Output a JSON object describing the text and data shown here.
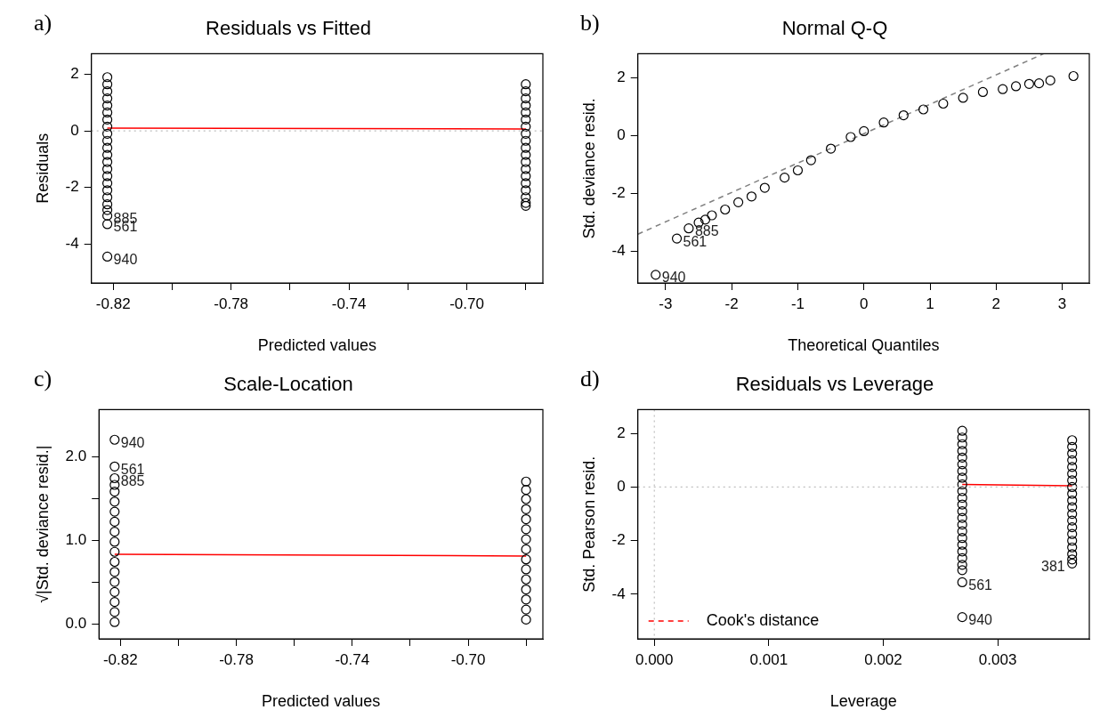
{
  "chart_data": [
    {
      "type": "scatter",
      "title": "Residuals vs Fitted",
      "xlabel": "Predicted values",
      "ylabel": "Residuals",
      "marker": "circle",
      "grid": false,
      "xlim": [
        -0.8274,
        -0.6742
      ],
      "xticks": [
        -0.82,
        {
          "value": -0.8,
          "label": null
        },
        -0.78,
        {
          "value": -0.76,
          "label": null
        },
        -0.74,
        {
          "value": -0.72,
          "label": null
        },
        {
          "value": -0.7,
          "label": "-0.70"
        },
        {
          "value": -0.68,
          "label": null
        }
      ],
      "ylim": [
        -5.38,
        2.73
      ],
      "yticks": [
        -4,
        -2,
        0,
        2
      ],
      "series": [
        {
          "color": "#000000",
          "x": [
            -0.822,
            -0.822,
            -0.822,
            -0.822,
            -0.822,
            -0.822,
            -0.822,
            -0.822,
            -0.822,
            -0.822,
            -0.822,
            -0.822,
            -0.822,
            -0.822,
            -0.822,
            -0.822,
            -0.822,
            -0.822,
            -0.822,
            -0.822,
            -0.822,
            -0.822,
            -0.822
          ],
          "values": [
            1.9,
            1.65,
            1.4,
            1.15,
            0.9,
            0.65,
            0.4,
            0.15,
            -0.1,
            -0.35,
            -0.6,
            -0.85,
            -1.1,
            -1.35,
            -1.6,
            -1.85,
            -2.1,
            -2.35,
            -2.6,
            -2.8,
            -3.0,
            -3.3,
            -4.45
          ]
        },
        {
          "color": "#000000",
          "x": [
            -0.68,
            -0.68,
            -0.68,
            -0.68,
            -0.68,
            -0.68,
            -0.68,
            -0.68,
            -0.68,
            -0.68,
            -0.68,
            -0.68,
            -0.68,
            -0.68,
            -0.68,
            -0.68,
            -0.68,
            -0.68,
            -0.68
          ],
          "values": [
            1.65,
            1.4,
            1.15,
            0.9,
            0.65,
            0.4,
            0.15,
            -0.1,
            -0.35,
            -0.6,
            -0.85,
            -1.1,
            -1.35,
            -1.6,
            -1.85,
            -2.1,
            -2.35,
            -2.55,
            -2.65
          ]
        },
        {
          "type": "line",
          "marker": "none",
          "color": "#ff0000",
          "x": [
            -0.822,
            -0.68
          ],
          "values": [
            0.1,
            0.07
          ]
        }
      ],
      "ref_lines": [
        {
          "axis": "y",
          "value": 0,
          "color": "#bebebe",
          "line_style": "dotted"
        }
      ],
      "annotations": [
        "a)",
        {
          "text": "885",
          "x": -0.822,
          "y": -3.0
        },
        {
          "text": "561",
          "x": -0.822,
          "y": -3.3
        },
        {
          "text": "940",
          "x": -0.822,
          "y": -4.45
        }
      ]
    },
    {
      "type": "scatter",
      "title": "Normal Q-Q",
      "xlabel": "Theoretical Quantiles",
      "ylabel": "Std. deviance resid.",
      "marker": "circle",
      "grid": false,
      "xlim": [
        -3.42,
        3.41
      ],
      "xticks": [
        -3,
        -2,
        -1,
        0,
        1,
        2,
        3
      ],
      "ylim": [
        -5.08,
        2.82
      ],
      "yticks": [
        -4,
        -2,
        0,
        2
      ],
      "series": [
        {
          "color": "#000000",
          "x": [
            -3.15,
            -2.83,
            -2.65,
            -2.5,
            -2.4,
            -2.3,
            -2.1,
            -1.9,
            -1.7,
            -1.5,
            -1.2,
            -1.0,
            -0.8,
            -0.5,
            -0.2,
            0,
            0.3,
            0.6,
            0.9,
            1.2,
            1.5,
            1.8,
            2.1,
            2.3,
            2.5,
            2.65,
            2.82,
            3.17
          ],
          "values": [
            -4.8,
            -3.55,
            -3.2,
            -3.0,
            -2.9,
            -2.75,
            -2.55,
            -2.3,
            -2.1,
            -1.8,
            -1.45,
            -1.2,
            -0.85,
            -0.45,
            -0.05,
            0.15,
            0.45,
            0.7,
            0.9,
            1.1,
            1.3,
            1.5,
            1.6,
            1.7,
            1.78,
            1.8,
            1.9,
            2.05
          ]
        },
        {
          "type": "line",
          "marker": "none",
          "color": "#808080",
          "line_style": "dashed",
          "x": [
            -3.42,
            2.72
          ],
          "values": [
            -3.4,
            2.82
          ]
        }
      ],
      "annotations": [
        "b)",
        {
          "text": "885",
          "x": -2.65,
          "y": -3.2
        },
        {
          "text": "561",
          "x": -2.83,
          "y": -3.55
        },
        {
          "text": "940",
          "x": -3.15,
          "y": -4.8
        }
      ]
    },
    {
      "type": "scatter",
      "title": "Scale-Location",
      "xlabel": "Predicted values",
      "ylabel": "√|Std. deviance resid.|",
      "marker": "circle",
      "grid": false,
      "xlim": [
        -0.8274,
        -0.6742
      ],
      "xticks": [
        -0.82,
        {
          "value": -0.8,
          "label": null
        },
        -0.78,
        {
          "value": -0.76,
          "label": null
        },
        -0.74,
        {
          "value": -0.72,
          "label": null
        },
        {
          "value": -0.7,
          "label": "-0.70"
        },
        {
          "value": -0.68,
          "label": null
        }
      ],
      "ylim": [
        -0.18,
        2.56
      ],
      "yticks": [
        {
          "value": 0,
          "label": "0.0"
        },
        {
          "value": 0.5,
          "label": null
        },
        {
          "value": 1,
          "label": "1.0"
        },
        {
          "value": 1.5,
          "label": null
        },
        {
          "value": 2,
          "label": "2.0"
        }
      ],
      "series": [
        {
          "color": "#000000",
          "x": [
            -0.822,
            -0.822,
            -0.822,
            -0.822,
            -0.822,
            -0.822,
            -0.822,
            -0.822,
            -0.822,
            -0.822,
            -0.822,
            -0.822,
            -0.822,
            -0.822,
            -0.822,
            -0.822,
            -0.822,
            -0.822
          ],
          "values": [
            0.02,
            0.14,
            0.26,
            0.38,
            0.5,
            0.62,
            0.74,
            0.86,
            0.98,
            1.1,
            1.22,
            1.34,
            1.46,
            1.58,
            1.66,
            1.74,
            1.88,
            2.2
          ]
        },
        {
          "color": "#000000",
          "x": [
            -0.68,
            -0.68,
            -0.68,
            -0.68,
            -0.68,
            -0.68,
            -0.68,
            -0.68,
            -0.68,
            -0.68,
            -0.68,
            -0.68,
            -0.68,
            -0.68,
            -0.68
          ],
          "values": [
            0.05,
            0.17,
            0.29,
            0.41,
            0.53,
            0.65,
            0.77,
            0.89,
            1.01,
            1.13,
            1.25,
            1.37,
            1.49,
            1.6,
            1.7
          ]
        },
        {
          "type": "line",
          "marker": "none",
          "color": "#ff0000",
          "x": [
            -0.822,
            -0.68
          ],
          "values": [
            0.83,
            0.81
          ]
        }
      ],
      "annotations": [
        "c)",
        {
          "text": "940",
          "x": -0.822,
          "y": 2.2
        },
        {
          "text": "561",
          "x": -0.822,
          "y": 1.88
        },
        {
          "text": "885",
          "x": -0.822,
          "y": 1.74
        }
      ]
    },
    {
      "type": "scatter",
      "title": "Residuals vs Leverage",
      "xlabel": "Leverage",
      "ylabel": "Std. Pearson resid.",
      "marker": "circle",
      "grid": false,
      "legend": "bottom left",
      "xlim": [
        -0.000144,
        0.0038
      ],
      "xticks": [
        {
          "value": 0,
          "label": "0.000"
        },
        {
          "value": 0.001,
          "label": "0.001"
        },
        {
          "value": 0.002,
          "label": "0.002"
        },
        {
          "value": 0.003,
          "label": "0.003"
        }
      ],
      "ylim": [
        -5.66,
        2.89
      ],
      "yticks": [
        -4,
        -2,
        0,
        2
      ],
      "series": [
        {
          "color": "#000000",
          "x": [
            0.00269,
            0.00269,
            0.00269,
            0.00269,
            0.00269,
            0.00269,
            0.00269,
            0.00269,
            0.00269,
            0.00269,
            0.00269,
            0.00269,
            0.00269,
            0.00269,
            0.00269,
            0.00269,
            0.00269,
            0.00269,
            0.00269,
            0.00269,
            0.00269,
            0.00269,
            0.00269,
            0.00269
          ],
          "values": [
            2.1,
            1.85,
            1.6,
            1.35,
            1.1,
            0.85,
            0.6,
            0.35,
            0.1,
            -0.15,
            -0.4,
            -0.65,
            -0.9,
            -1.15,
            -1.4,
            -1.65,
            -1.9,
            -2.15,
            -2.4,
            -2.65,
            -2.9,
            -3.1,
            -3.55,
            -4.85
          ]
        },
        {
          "color": "#000000",
          "x": [
            0.00365,
            0.00365,
            0.00365,
            0.00365,
            0.00365,
            0.00365,
            0.00365,
            0.00365,
            0.00365,
            0.00365,
            0.00365,
            0.00365,
            0.00365,
            0.00365,
            0.00365,
            0.00365,
            0.00365,
            0.00365,
            0.00365,
            0.00365
          ],
          "values": [
            1.75,
            1.5,
            1.25,
            1.0,
            0.75,
            0.5,
            0.25,
            0,
            -0.25,
            -0.5,
            -0.75,
            -1.0,
            -1.25,
            -1.5,
            -1.75,
            -2.0,
            -2.25,
            -2.5,
            -2.7,
            -2.85
          ]
        },
        {
          "type": "line",
          "marker": "none",
          "color": "#ff0000",
          "x": [
            0.00269,
            0.00365
          ],
          "values": [
            0.1,
            0.05
          ]
        },
        {
          "name": "Cook's distance",
          "type": "line",
          "color": "#ff0000",
          "line_style": "dashed"
        }
      ],
      "ref_lines": [
        {
          "axis": "x",
          "value": 0,
          "color": "#bebebe",
          "line_style": "dotted"
        },
        {
          "axis": "y",
          "value": 0,
          "color": "#bebebe",
          "line_style": "dotted"
        }
      ],
      "annotations": [
        "d)",
        {
          "text": "561",
          "x": 0.00269,
          "y": -3.55
        },
        {
          "text": "940",
          "x": 0.00269,
          "y": -4.85
        },
        {
          "text": "381",
          "x": 0.00365,
          "y": -2.85
        }
      ]
    }
  ]
}
